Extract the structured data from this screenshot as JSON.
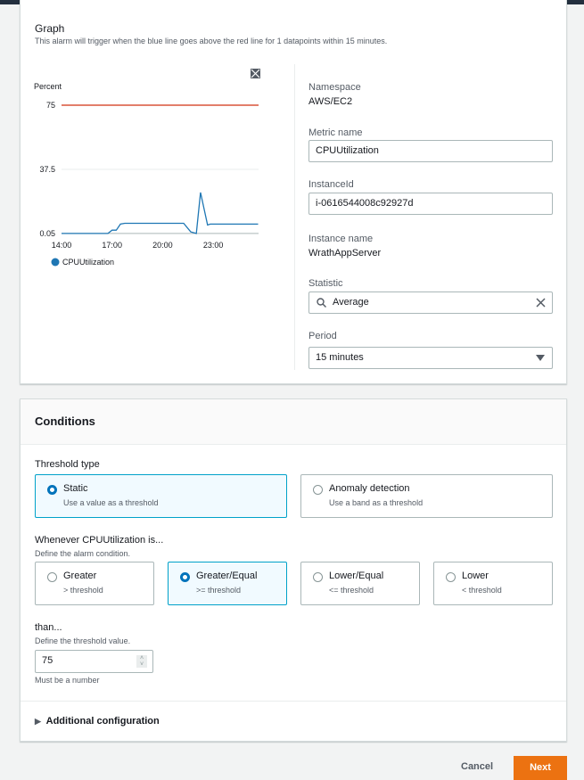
{
  "graph": {
    "title": "Graph",
    "description": "This alarm will trigger when the blue line goes above the red line for 1 datapoints within 15 minutes.",
    "expand_icon": "expand-icon"
  },
  "chart_data": {
    "type": "line",
    "ylabel": "Percent",
    "yticks": [
      "75",
      "37.5",
      "0.05"
    ],
    "ylim": [
      0,
      75
    ],
    "xticks": [
      "14:00",
      "17:00",
      "20:00",
      "23:00"
    ],
    "threshold": {
      "value": 75,
      "color": "#d13212"
    },
    "series": [
      {
        "name": "CPUUtilization",
        "color": "#1f77b4",
        "x": [
          "14:00",
          "16:45",
          "17:00",
          "17:15",
          "17:30",
          "17:45",
          "21:15",
          "21:40",
          "22:00",
          "22:15",
          "22:40",
          "22:50",
          "01:40"
        ],
        "values": [
          0.05,
          0.05,
          2,
          2,
          5.5,
          6,
          6,
          1,
          0.05,
          24,
          5,
          5.5,
          5.5
        ]
      }
    ],
    "grid": true,
    "legend": "bottom-left"
  },
  "metric": {
    "namespace_label": "Namespace",
    "namespace": "AWS/EC2",
    "metric_name_label": "Metric name",
    "metric_name": "CPUUtilization",
    "instance_id_label": "InstanceId",
    "instance_id": "i-0616544008c92927d",
    "instance_name_label": "Instance name",
    "instance_name": "WrathAppServer",
    "statistic_label": "Statistic",
    "statistic": "Average",
    "period_label": "Period",
    "period": "15 minutes"
  },
  "conditions": {
    "title": "Conditions",
    "threshold_type_label": "Threshold type",
    "threshold_types": [
      {
        "title": "Static",
        "desc": "Use a value as a threshold",
        "selected": true
      },
      {
        "title": "Anomaly detection",
        "desc": "Use a band as a threshold",
        "selected": false
      }
    ],
    "whenever_label": "Whenever CPUUtilization is...",
    "whenever_desc": "Define the alarm condition.",
    "operators": [
      {
        "title": "Greater",
        "desc": "> threshold",
        "selected": false
      },
      {
        "title": "Greater/Equal",
        "desc": ">= threshold",
        "selected": true
      },
      {
        "title": "Lower/Equal",
        "desc": "<= threshold",
        "selected": false
      },
      {
        "title": "Lower",
        "desc": "< threshold",
        "selected": false
      }
    ],
    "than_label": "than...",
    "than_desc": "Define the threshold value.",
    "threshold_value": "75",
    "threshold_hint": "Must be a number",
    "additional_config": "Additional configuration"
  },
  "footer": {
    "cancel": "Cancel",
    "next": "Next",
    "accent": "#ec7211"
  }
}
